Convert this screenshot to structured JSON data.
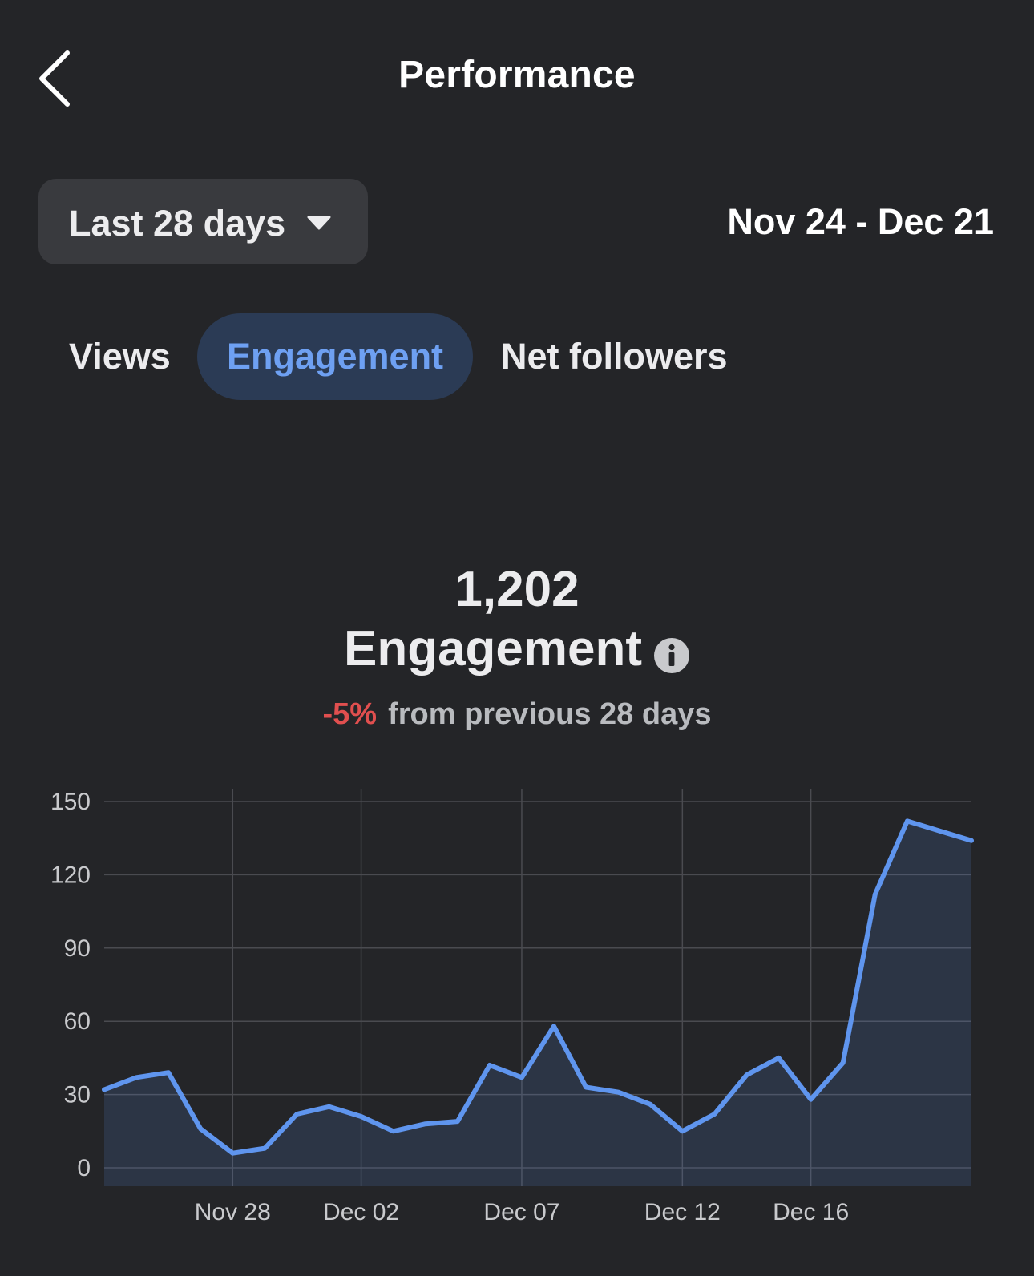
{
  "header": {
    "title": "Performance",
    "back_icon": "chevron-left-icon"
  },
  "filter": {
    "range_label": "Last 28 days",
    "caret_icon": "caret-down-icon",
    "date_range": "Nov 24 - Dec 21"
  },
  "tabs": [
    {
      "label": "Views",
      "selected": false
    },
    {
      "label": "Engagement",
      "selected": true
    },
    {
      "label": "Net followers",
      "selected": false
    }
  ],
  "summary": {
    "value": "1,202",
    "label": "Engagement",
    "info_icon": "info-icon",
    "delta": "-5%",
    "delta_text": "from previous 28 days",
    "delta_color": "#e14f4f"
  },
  "colors": {
    "background": "#242528",
    "accent": "#5f95ee",
    "selected_tab_bg": "#2b3b55"
  },
  "chart_data": {
    "type": "area",
    "x": [
      "Nov 24",
      "Nov 25",
      "Nov 26",
      "Nov 27",
      "Nov 28",
      "Nov 29",
      "Nov 30",
      "Dec 01",
      "Dec 02",
      "Dec 03",
      "Dec 04",
      "Dec 05",
      "Dec 06",
      "Dec 07",
      "Dec 08",
      "Dec 09",
      "Dec 10",
      "Dec 11",
      "Dec 12",
      "Dec 13",
      "Dec 14",
      "Dec 15",
      "Dec 16",
      "Dec 17",
      "Dec 18",
      "Dec 19",
      "Dec 20",
      "Dec 21"
    ],
    "values": [
      32,
      37,
      39,
      16,
      6,
      8,
      22,
      25,
      21,
      15,
      18,
      19,
      42,
      37,
      58,
      33,
      31,
      26,
      15,
      22,
      38,
      45,
      28,
      43,
      112,
      142,
      138,
      134
    ],
    "x_ticks": [
      "Nov 28",
      "Dec 02",
      "Dec 07",
      "Dec 12",
      "Dec 16"
    ],
    "y_ticks": [
      0,
      30,
      60,
      90,
      120,
      150
    ],
    "ylim": [
      0,
      150
    ],
    "title": "",
    "xlabel": "",
    "ylabel": "",
    "grid": true
  }
}
